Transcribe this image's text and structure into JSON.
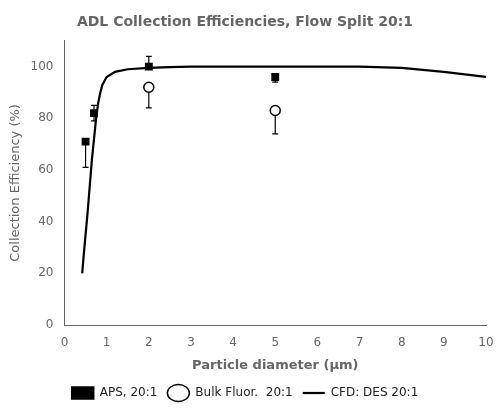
{
  "chart_data": {
    "type": "line",
    "title": "ADL Collection Efficiencies, Flow Split 20:1",
    "xlabel": "Particle diameter (μm)",
    "ylabel": "Collection Efficiency (%)",
    "xlim": [
      0,
      10
    ],
    "ylim": [
      0,
      110
    ],
    "xticks": [
      0,
      1,
      2,
      3,
      4,
      5,
      6,
      7,
      8,
      9,
      10
    ],
    "yticks": [
      0,
      20,
      40,
      60,
      80,
      100
    ],
    "grid": false,
    "legend": "bottom",
    "series": [
      {
        "name": "CFD: DES 20:1",
        "type": "line",
        "line_style": "solid",
        "color": "#000000",
        "x": [
          0.42,
          0.45,
          0.5,
          0.55,
          0.6,
          0.65,
          0.7,
          0.75,
          0.8,
          0.85,
          0.9,
          1.0,
          1.2,
          1.5,
          2.0,
          2.5,
          3.0,
          4.0,
          5.0,
          6.0,
          7.0,
          8.0,
          9.0,
          10.0
        ],
        "values": [
          20,
          26,
          35,
          44,
          54,
          64,
          72,
          80,
          86,
          90,
          93,
          96,
          98,
          99,
          99.5,
          99.8,
          100,
          100,
          100,
          100,
          100,
          99.5,
          98,
          96
        ]
      },
      {
        "name": "APS, 20:1",
        "type": "scatter",
        "marker": "square",
        "color": "#000000",
        "x": [
          0.5,
          0.7,
          2.0,
          5.0
        ],
        "values": [
          71,
          82,
          100,
          96
        ],
        "yerr_low": [
          10,
          3,
          0,
          2
        ],
        "yerr_high": [
          0,
          3,
          4,
          0
        ]
      },
      {
        "name": "Bulk Fluor.  20:1",
        "type": "scatter",
        "marker": "open_circle",
        "color": "#000000",
        "x": [
          2.0,
          5.0
        ],
        "values": [
          92,
          83
        ],
        "yerr_low": [
          8,
          9
        ],
        "yerr_high": [
          0,
          0
        ]
      }
    ]
  }
}
